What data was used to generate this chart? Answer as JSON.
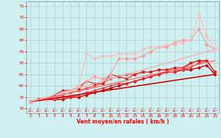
{
  "xlabel": "Vent moyen/en rafales ( km/h )",
  "xlim": [
    -0.5,
    23.5
  ],
  "ylim": [
    28,
    77
  ],
  "yticks": [
    30,
    35,
    40,
    45,
    50,
    55,
    60,
    65,
    70,
    75
  ],
  "xticks": [
    0,
    1,
    2,
    3,
    4,
    5,
    6,
    7,
    8,
    9,
    10,
    11,
    12,
    13,
    14,
    15,
    16,
    17,
    18,
    19,
    20,
    21,
    22,
    23
  ],
  "bg_color": "#cef0f0",
  "grid_color": "#b0c8c8",
  "series": [
    {
      "x": [
        0,
        1,
        2,
        3,
        4,
        5,
        6,
        7,
        8,
        9,
        10,
        11,
        12,
        13,
        14,
        15,
        16,
        17,
        18,
        19,
        20,
        21,
        22,
        23
      ],
      "y": [
        33,
        34,
        34,
        34,
        34,
        35,
        35,
        36,
        37,
        38,
        39,
        40,
        41,
        42,
        43,
        44,
        45,
        46,
        46,
        47,
        47,
        48,
        49,
        45
      ],
      "color": "#cc0000",
      "marker": "D",
      "markersize": 1.8,
      "linewidth": 1.0
    },
    {
      "x": [
        0,
        1,
        2,
        3,
        4,
        5,
        6,
        7,
        8,
        9,
        10,
        11,
        12,
        13,
        14,
        15,
        16,
        17,
        18,
        19,
        20,
        21,
        22,
        23
      ],
      "y": [
        33,
        34,
        34,
        34,
        35,
        35,
        36,
        37,
        38,
        39,
        40,
        41,
        41,
        42,
        43,
        44,
        45,
        46,
        46,
        47,
        48,
        50,
        51,
        46
      ],
      "color": "#ff2222",
      "marker": "+",
      "markersize": 3,
      "linewidth": 0.8
    },
    {
      "x": [
        0,
        1,
        2,
        3,
        4,
        5,
        6,
        7,
        8,
        9,
        10,
        11,
        12,
        13,
        14,
        15,
        16,
        17,
        18,
        19,
        20,
        21,
        22,
        23
      ],
      "y": [
        33,
        34,
        34,
        35,
        36,
        37,
        38,
        39,
        40,
        41,
        43,
        44,
        45,
        45,
        46,
        46,
        47,
        47,
        47,
        47,
        50,
        51,
        51,
        46
      ],
      "color": "#ff4444",
      "marker": "x",
      "markersize": 2.5,
      "linewidth": 0.8
    },
    {
      "x": [
        0,
        1,
        2,
        3,
        4,
        5,
        6,
        7,
        8,
        9,
        10,
        11,
        12,
        13,
        14,
        15,
        16,
        17,
        18,
        19,
        20,
        21,
        22,
        23
      ],
      "y": [
        33,
        34,
        34,
        36,
        38,
        38,
        39,
        42,
        41,
        41,
        45,
        44,
        43,
        45,
        46,
        46,
        47,
        47,
        48,
        48,
        50,
        51,
        51,
        46
      ],
      "color": "#dd1111",
      "marker": "*",
      "markersize": 2.5,
      "linewidth": 0.8
    },
    {
      "x": [
        0,
        2,
        3,
        4,
        5,
        6,
        7,
        8,
        9,
        10,
        11,
        12,
        13,
        14,
        15,
        16,
        17,
        18,
        19,
        20,
        21,
        22,
        23
      ],
      "y": [
        33,
        34,
        35,
        37,
        38,
        40,
        42,
        44,
        43,
        45,
        52,
        52,
        52,
        53,
        55,
        57,
        57,
        59,
        60,
        60,
        65,
        58,
        56
      ],
      "color": "#ff9999",
      "marker": "D",
      "markersize": 2.0,
      "linewidth": 0.8
    },
    {
      "x": [
        0,
        2,
        3,
        4,
        5,
        6,
        7,
        8,
        9,
        10,
        11,
        12,
        13,
        14,
        15,
        16,
        17,
        18,
        19,
        20,
        21,
        22,
        23
      ],
      "y": [
        33,
        34,
        35,
        37,
        38,
        40,
        54,
        52,
        53,
        53,
        54,
        54,
        54,
        56,
        57,
        57,
        58,
        58,
        59,
        60,
        71,
        62,
        56
      ],
      "color": "#ffbbbb",
      "marker": "D",
      "markersize": 2.0,
      "linewidth": 0.8
    },
    {
      "x": [
        0,
        23
      ],
      "y": [
        33,
        45
      ],
      "color": "#cc0000",
      "marker": null,
      "markersize": 0,
      "linewidth": 1.2
    },
    {
      "x": [
        0,
        23
      ],
      "y": [
        33,
        51
      ],
      "color": "#ff6666",
      "marker": null,
      "markersize": 0,
      "linewidth": 0.9
    },
    {
      "x": [
        0,
        23
      ],
      "y": [
        33,
        56
      ],
      "color": "#ffaaaa",
      "marker": null,
      "markersize": 0,
      "linewidth": 0.9
    }
  ]
}
